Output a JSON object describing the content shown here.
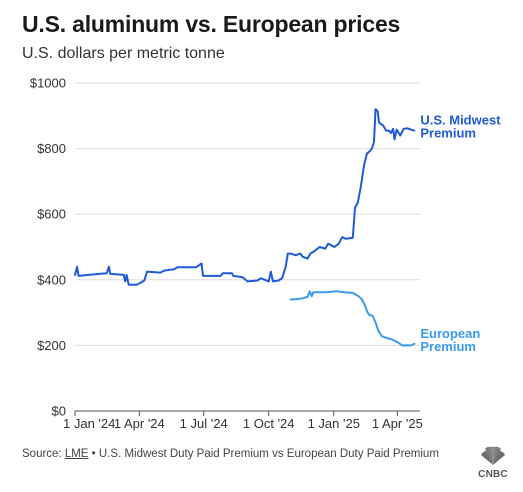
{
  "title": "U.S. aluminum vs. European prices",
  "subtitle": "U.S. dollars per metric tonne",
  "source": {
    "prefix": "Source: ",
    "link": "LME",
    "rest": " • U.S. Midwest Duty Paid Premium vs European Duty Paid Premium"
  },
  "logo": {
    "text": "CNBC"
  },
  "colors": {
    "us": "#1f5bd6",
    "eu": "#3a9bec",
    "grid": "#dddddd",
    "axis": "#555555"
  },
  "chart_data": {
    "type": "line",
    "title": "U.S. aluminum vs. European prices",
    "subtitle": "U.S. dollars per metric tonne",
    "ylim": [
      0,
      1000
    ],
    "y_ticks": [
      0,
      200,
      400,
      600,
      800,
      1000
    ],
    "y_tick_labels": [
      "$0",
      "$200",
      "$400",
      "$600",
      "$800",
      "$1000"
    ],
    "x_range": [
      "2024-01-01",
      "2025-05-03"
    ],
    "x_ticks": [
      "2024-01-01",
      "2024-04-01",
      "2024-07-01",
      "2024-10-01",
      "2025-01-01",
      "2025-04-01"
    ],
    "x_tick_labels": [
      "1 Jan '24",
      "1 Apr '24",
      "1 Jul '24",
      "1 Oct '24",
      "1 Jan '25",
      "1 Apr '25"
    ],
    "grid": true,
    "series": [
      {
        "name": "U.S. Midwest Premium",
        "label_lines": [
          "U.S. Midwest",
          "Premium"
        ],
        "color": "#1f5bd6",
        "points": [
          [
            "2024-01-01",
            415
          ],
          [
            "2024-01-04",
            440
          ],
          [
            "2024-01-06",
            412
          ],
          [
            "2024-01-20",
            415
          ],
          [
            "2024-02-05",
            418
          ],
          [
            "2024-02-15",
            420
          ],
          [
            "2024-02-18",
            440
          ],
          [
            "2024-02-20",
            418
          ],
          [
            "2024-03-10",
            415
          ],
          [
            "2024-03-12",
            395
          ],
          [
            "2024-03-14",
            415
          ],
          [
            "2024-03-17",
            385
          ],
          [
            "2024-03-28",
            385
          ],
          [
            "2024-04-02",
            390
          ],
          [
            "2024-04-08",
            398
          ],
          [
            "2024-04-12",
            425
          ],
          [
            "2024-05-01",
            422
          ],
          [
            "2024-05-06",
            428
          ],
          [
            "2024-05-20",
            432
          ],
          [
            "2024-05-25",
            438
          ],
          [
            "2024-06-20",
            438
          ],
          [
            "2024-06-28",
            450
          ],
          [
            "2024-06-30",
            412
          ],
          [
            "2024-07-25",
            412
          ],
          [
            "2024-07-28",
            420
          ],
          [
            "2024-08-10",
            420
          ],
          [
            "2024-08-12",
            412
          ],
          [
            "2024-08-25",
            408
          ],
          [
            "2024-09-01",
            395
          ],
          [
            "2024-09-15",
            398
          ],
          [
            "2024-09-20",
            405
          ],
          [
            "2024-10-01",
            395
          ],
          [
            "2024-10-04",
            425
          ],
          [
            "2024-10-07",
            395
          ],
          [
            "2024-10-15",
            398
          ],
          [
            "2024-10-20",
            405
          ],
          [
            "2024-10-25",
            440
          ],
          [
            "2024-10-28",
            480
          ],
          [
            "2024-11-01",
            480
          ],
          [
            "2024-11-08",
            475
          ],
          [
            "2024-11-15",
            480
          ],
          [
            "2024-11-18",
            470
          ],
          [
            "2024-11-25",
            465
          ],
          [
            "2024-11-29",
            480
          ],
          [
            "2024-12-05",
            488
          ],
          [
            "2024-12-12",
            500
          ],
          [
            "2024-12-20",
            495
          ],
          [
            "2024-12-24",
            510
          ],
          [
            "2025-01-02",
            500
          ],
          [
            "2025-01-08",
            510
          ],
          [
            "2025-01-13",
            530
          ],
          [
            "2025-01-18",
            525
          ],
          [
            "2025-01-28",
            528
          ],
          [
            "2025-01-31",
            620
          ],
          [
            "2025-02-04",
            635
          ],
          [
            "2025-02-08",
            680
          ],
          [
            "2025-02-13",
            750
          ],
          [
            "2025-02-17",
            785
          ],
          [
            "2025-02-21",
            792
          ],
          [
            "2025-02-24",
            800
          ],
          [
            "2025-02-27",
            820
          ],
          [
            "2025-03-01",
            920
          ],
          [
            "2025-03-04",
            915
          ],
          [
            "2025-03-06",
            880
          ],
          [
            "2025-03-12",
            870
          ],
          [
            "2025-03-16",
            855
          ],
          [
            "2025-03-20",
            855
          ],
          [
            "2025-03-23",
            848
          ],
          [
            "2025-03-26",
            860
          ],
          [
            "2025-03-28",
            828
          ],
          [
            "2025-03-31",
            858
          ],
          [
            "2025-04-05",
            840
          ],
          [
            "2025-04-10",
            860
          ],
          [
            "2025-04-15",
            862
          ],
          [
            "2025-04-20",
            858
          ],
          [
            "2025-04-25",
            855
          ]
        ]
      },
      {
        "name": "European Premium",
        "label_lines": [
          "European",
          "Premium"
        ],
        "color": "#3a9bec",
        "points": [
          [
            "2024-11-01",
            340
          ],
          [
            "2024-11-15",
            342
          ],
          [
            "2024-11-20",
            345
          ],
          [
            "2024-11-25",
            348
          ],
          [
            "2024-11-28",
            365
          ],
          [
            "2024-12-01",
            350
          ],
          [
            "2024-12-03",
            362
          ],
          [
            "2024-12-20",
            362
          ],
          [
            "2025-01-05",
            365
          ],
          [
            "2025-01-15",
            362
          ],
          [
            "2025-01-28",
            360
          ],
          [
            "2025-02-05",
            350
          ],
          [
            "2025-02-10",
            340
          ],
          [
            "2025-02-14",
            322
          ],
          [
            "2025-02-18",
            300
          ],
          [
            "2025-02-21",
            292
          ],
          [
            "2025-02-25",
            290
          ],
          [
            "2025-03-01",
            270
          ],
          [
            "2025-03-05",
            245
          ],
          [
            "2025-03-10",
            228
          ],
          [
            "2025-03-18",
            222
          ],
          [
            "2025-03-25",
            218
          ],
          [
            "2025-04-01",
            210
          ],
          [
            "2025-04-08",
            200
          ],
          [
            "2025-04-20",
            200
          ],
          [
            "2025-04-25",
            205
          ]
        ]
      }
    ]
  }
}
